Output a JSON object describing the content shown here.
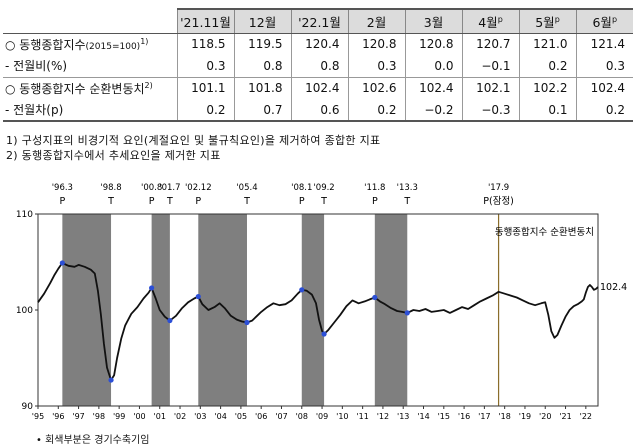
{
  "table": {
    "header": [
      {
        "label": "'21.11월",
        "sup": ""
      },
      {
        "label": "12월",
        "sup": ""
      },
      {
        "label": "'22.1월",
        "sup": ""
      },
      {
        "label": "2월",
        "sup": ""
      },
      {
        "label": "3월",
        "sup": ""
      },
      {
        "label": "4월",
        "sup": "p"
      },
      {
        "label": "5월",
        "sup": "p"
      },
      {
        "label": "6월",
        "sup": "p"
      }
    ],
    "rows": [
      {
        "label": "○ 동행종합지수",
        "label_small": "(2015=100)",
        "label_sup": "1)",
        "values": [
          "118.5",
          "119.5",
          "120.4",
          "120.8",
          "120.8",
          "120.7",
          "121.0",
          "121.4"
        ]
      },
      {
        "label": "- 전월비(%)",
        "label_small": "",
        "label_sup": "",
        "values": [
          "0.3",
          "0.8",
          "0.8",
          "0.3",
          "0.0",
          "−0.1",
          "0.2",
          "0.3"
        ]
      },
      {
        "label": "○ 동행종합지수 순환변동치",
        "label_small": "",
        "label_sup": "2)",
        "values": [
          "101.1",
          "101.8",
          "102.4",
          "102.6",
          "102.4",
          "102.1",
          "102.2",
          "102.4"
        ]
      },
      {
        "label": "- 전월차(p)",
        "label_small": "",
        "label_sup": "",
        "values": [
          "0.2",
          "0.7",
          "0.6",
          "0.2",
          "−0.2",
          "−0.3",
          "0.1",
          "0.2"
        ]
      }
    ]
  },
  "notes": [
    "1) 구성지표의 비경기적 요인(계절요인 및 불규칙요인)을 제거하여 종합한 지표",
    "2) 동행종합지수에서 추세요인을 제거한 지표"
  ],
  "footnote": "• 회색부분은 경기수축기임",
  "colors": {
    "line": "#111111",
    "shade": "#7f7f7f",
    "marker": "#2c4fd6",
    "grid": "#cccccc"
  },
  "chart_data": {
    "type": "line",
    "legend": "동행종합지수 순환변동치",
    "legend_placement": "top-right",
    "last_value_label": "102.4",
    "ylim": [
      90,
      110
    ],
    "yticks": [
      90,
      100,
      110
    ],
    "xlim": [
      1995,
      2022.6
    ],
    "xticks": [
      "'95",
      "'96",
      "'97",
      "'98",
      "'99",
      "'00",
      "'01",
      "'02",
      "'03",
      "'04",
      "'05",
      "'06",
      "'07",
      "'08",
      "'09",
      "'10",
      "'11",
      "'12",
      "'13",
      "'14",
      "'15",
      "'16",
      "'17",
      "'18",
      "'19",
      "'20",
      "'21",
      "'22"
    ],
    "grid": false,
    "turning_points": [
      {
        "date": "'96.3",
        "mark": "P",
        "x": 1996.2
      },
      {
        "date": "'98.8",
        "mark": "T",
        "x": 1998.6
      },
      {
        "date": "'00.8",
        "mark": "P",
        "x": 2000.6
      },
      {
        "date": "'01.7",
        "mark": "T",
        "x": 2001.5
      },
      {
        "date": "'02.12",
        "mark": "P",
        "x": 2002.9
      },
      {
        "date": "'05.4",
        "mark": "T",
        "x": 2005.3
      },
      {
        "date": "'08.1",
        "mark": "P",
        "x": 2008.0
      },
      {
        "date": "'09.2",
        "mark": "T",
        "x": 2009.1
      },
      {
        "date": "'11.8",
        "mark": "P",
        "x": 2011.6
      },
      {
        "date": "'13.3",
        "mark": "T",
        "x": 2013.2
      },
      {
        "date": "'17.9",
        "mark": "P(잠정)",
        "x": 2017.7
      }
    ],
    "contractions": [
      [
        1996.2,
        1998.6
      ],
      [
        2000.6,
        2001.5
      ],
      [
        2002.9,
        2005.3
      ],
      [
        2008.0,
        2009.1
      ],
      [
        2011.6,
        2013.2
      ]
    ],
    "provisional_peak": 2017.7,
    "series": [
      {
        "name": "동행종합지수 순환변동치",
        "points": [
          [
            1995.0,
            100.8
          ],
          [
            1995.3,
            101.7
          ],
          [
            1995.6,
            102.8
          ],
          [
            1995.8,
            103.6
          ],
          [
            1996.0,
            104.3
          ],
          [
            1996.2,
            104.9
          ],
          [
            1996.5,
            104.6
          ],
          [
            1996.8,
            104.5
          ],
          [
            1997.0,
            104.7
          ],
          [
            1997.3,
            104.5
          ],
          [
            1997.6,
            104.2
          ],
          [
            1997.8,
            103.8
          ],
          [
            1997.95,
            102.0
          ],
          [
            1998.1,
            99.5
          ],
          [
            1998.25,
            96.5
          ],
          [
            1998.4,
            94.0
          ],
          [
            1998.6,
            92.7
          ],
          [
            1998.75,
            93.2
          ],
          [
            1998.9,
            95.0
          ],
          [
            1999.1,
            97.0
          ],
          [
            1999.3,
            98.4
          ],
          [
            1999.6,
            99.6
          ],
          [
            1999.9,
            100.3
          ],
          [
            2000.2,
            101.2
          ],
          [
            2000.45,
            101.8
          ],
          [
            2000.6,
            102.3
          ],
          [
            2000.8,
            101.2
          ],
          [
            2001.0,
            100.0
          ],
          [
            2001.25,
            99.3
          ],
          [
            2001.5,
            98.9
          ],
          [
            2001.8,
            99.4
          ],
          [
            2002.1,
            100.2
          ],
          [
            2002.4,
            100.8
          ],
          [
            2002.7,
            101.2
          ],
          [
            2002.9,
            101.4
          ],
          [
            2003.1,
            100.6
          ],
          [
            2003.4,
            100.0
          ],
          [
            2003.7,
            100.3
          ],
          [
            2003.95,
            100.7
          ],
          [
            2004.2,
            100.2
          ],
          [
            2004.5,
            99.4
          ],
          [
            2004.8,
            99.0
          ],
          [
            2005.05,
            98.8
          ],
          [
            2005.3,
            98.7
          ],
          [
            2005.55,
            98.9
          ],
          [
            2005.8,
            99.4
          ],
          [
            2006.0,
            99.8
          ],
          [
            2006.3,
            100.3
          ],
          [
            2006.6,
            100.7
          ],
          [
            2006.9,
            100.5
          ],
          [
            2007.2,
            100.6
          ],
          [
            2007.5,
            101.0
          ],
          [
            2007.8,
            101.7
          ],
          [
            2008.0,
            102.1
          ],
          [
            2008.25,
            102.0
          ],
          [
            2008.5,
            101.6
          ],
          [
            2008.7,
            100.7
          ],
          [
            2008.85,
            99.0
          ],
          [
            2009.0,
            97.8
          ],
          [
            2009.1,
            97.5
          ],
          [
            2009.3,
            97.9
          ],
          [
            2009.6,
            98.7
          ],
          [
            2009.9,
            99.5
          ],
          [
            2010.2,
            100.4
          ],
          [
            2010.5,
            101.0
          ],
          [
            2010.8,
            100.7
          ],
          [
            2011.1,
            100.9
          ],
          [
            2011.35,
            101.1
          ],
          [
            2011.6,
            101.3
          ],
          [
            2011.85,
            100.9
          ],
          [
            2012.1,
            100.6
          ],
          [
            2012.4,
            100.2
          ],
          [
            2012.7,
            99.9
          ],
          [
            2012.95,
            99.8
          ],
          [
            2013.2,
            99.7
          ],
          [
            2013.5,
            100.0
          ],
          [
            2013.8,
            99.9
          ],
          [
            2014.1,
            100.1
          ],
          [
            2014.4,
            99.8
          ],
          [
            2014.7,
            99.9
          ],
          [
            2015.0,
            100.0
          ],
          [
            2015.3,
            99.7
          ],
          [
            2015.6,
            100.0
          ],
          [
            2015.9,
            100.3
          ],
          [
            2016.2,
            100.1
          ],
          [
            2016.5,
            100.5
          ],
          [
            2016.8,
            100.9
          ],
          [
            2017.1,
            101.2
          ],
          [
            2017.4,
            101.5
          ],
          [
            2017.7,
            101.9
          ],
          [
            2018.0,
            101.7
          ],
          [
            2018.3,
            101.5
          ],
          [
            2018.6,
            101.3
          ],
          [
            2018.9,
            101.0
          ],
          [
            2019.2,
            100.7
          ],
          [
            2019.5,
            100.5
          ],
          [
            2019.8,
            100.7
          ],
          [
            2020.0,
            100.8
          ],
          [
            2020.15,
            99.5
          ],
          [
            2020.3,
            97.8
          ],
          [
            2020.45,
            97.1
          ],
          [
            2020.6,
            97.4
          ],
          [
            2020.8,
            98.4
          ],
          [
            2021.0,
            99.3
          ],
          [
            2021.2,
            100.0
          ],
          [
            2021.4,
            100.4
          ],
          [
            2021.6,
            100.6
          ],
          [
            2021.8,
            100.9
          ],
          [
            2021.9,
            101.1
          ],
          [
            2022.0,
            101.8
          ],
          [
            2022.1,
            102.4
          ],
          [
            2022.2,
            102.6
          ],
          [
            2022.3,
            102.4
          ],
          [
            2022.4,
            102.1
          ],
          [
            2022.5,
            102.2
          ],
          [
            2022.6,
            102.4
          ]
        ]
      }
    ],
    "markers": [
      [
        1996.2,
        104.9
      ],
      [
        1998.6,
        92.7
      ],
      [
        2000.6,
        102.3
      ],
      [
        2001.5,
        98.9
      ],
      [
        2002.9,
        101.4
      ],
      [
        2005.3,
        98.7
      ],
      [
        2008.0,
        102.1
      ],
      [
        2009.1,
        97.5
      ],
      [
        2011.6,
        101.3
      ],
      [
        2013.2,
        99.7
      ]
    ]
  }
}
